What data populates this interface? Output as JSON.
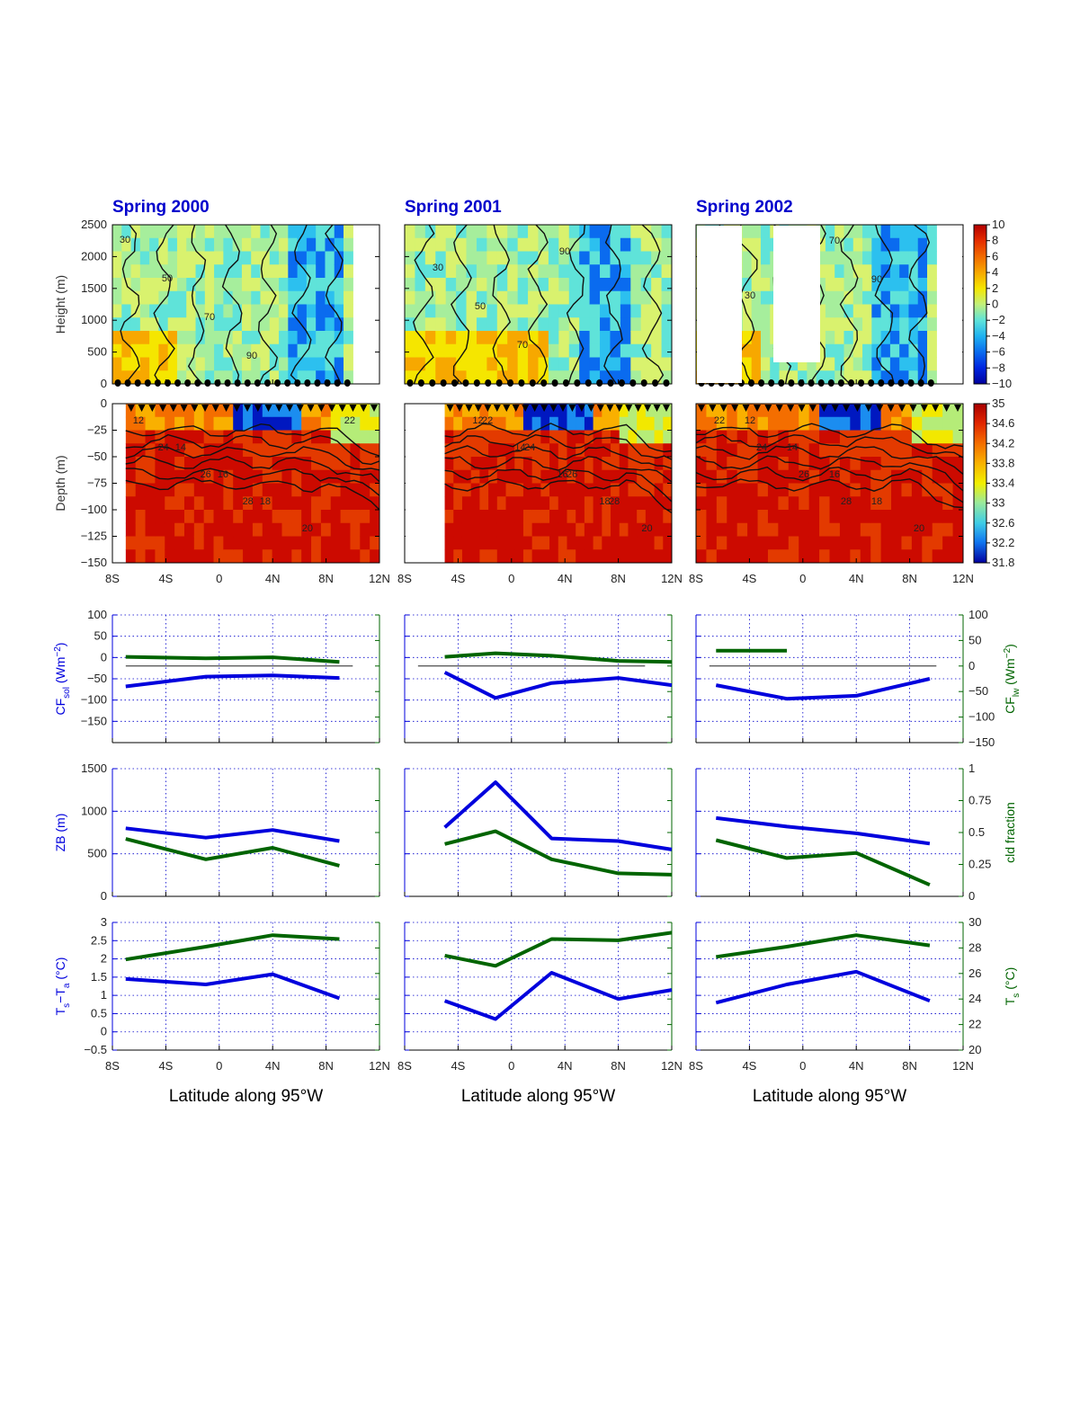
{
  "figure": {
    "column_titles": [
      "Spring 2000",
      "Spring 2001",
      "Spring 2002"
    ],
    "x_axis": {
      "label": "Latitude along 95°W",
      "ticks": [
        -8,
        -4,
        0,
        4,
        8,
        12
      ],
      "tick_labels": [
        "8S",
        "4S",
        "0",
        "4N",
        "8N",
        "12N"
      ],
      "range": [
        -8,
        12
      ]
    },
    "colors": {
      "title": "#0000cc",
      "blue_series": "#0000dd",
      "green_series": "#006400",
      "grid": "#0000cc"
    }
  },
  "chart_data": [
    {
      "type": "heatmap",
      "row": "atmosphere",
      "ylabel": "Height (m)",
      "yticks": [
        0,
        500,
        1000,
        1500,
        2000,
        2500
      ],
      "ylim": [
        0,
        2500
      ],
      "colorbar": {
        "ticks": [
          "10",
          "8",
          "6",
          "4",
          "2",
          "0",
          "−2",
          "−4",
          "−6",
          "−8",
          "−10"
        ],
        "range": [
          -10,
          10
        ]
      },
      "contour_labels": [
        "30",
        "50",
        "70",
        "90"
      ],
      "columns": [
        {
          "year": "Spring 2000",
          "data_extent": [
            -8,
            10
          ]
        },
        {
          "year": "Spring 2001",
          "data_extent": [
            -8,
            12
          ]
        },
        {
          "year": "Spring 2002",
          "data_extent": [
            -8,
            10
          ]
        }
      ]
    },
    {
      "type": "heatmap",
      "row": "ocean",
      "ylabel": "Depth (m)",
      "yticks": [
        0,
        -25,
        -50,
        -75,
        -100,
        -125,
        -150
      ],
      "ylim": [
        -150,
        0
      ],
      "colorbar": {
        "ticks": [
          "35",
          "34.6",
          "34.2",
          "33.8",
          "33.4",
          "33",
          "32.6",
          "32.2",
          "31.8"
        ],
        "range": [
          31.8,
          35
        ]
      },
      "contour_labels": [
        "12",
        "14",
        "16",
        "18",
        "20",
        "22",
        "24",
        "26",
        "28"
      ],
      "columns": [
        {
          "year": "Spring 2000",
          "data_extent": [
            -7,
            12
          ]
        },
        {
          "year": "Spring 2001",
          "data_extent": [
            -5,
            12
          ]
        },
        {
          "year": "Spring 2002",
          "data_extent": [
            -8,
            12
          ]
        }
      ]
    },
    {
      "type": "line",
      "row": "cloud_forcing",
      "ylabel_left": "CF",
      "ylabel_left_sub": "sol",
      "ylabel_left_unit": " (Wm",
      "ylabel_left_sup": "−2",
      "ylabel_right": "CF",
      "ylabel_right_sub": "lw",
      "ylabel_right_unit": " (Wm",
      "ylabel_right_sup": "−2",
      "yticks_left": [
        100,
        50,
        0,
        -50,
        -100,
        -150
      ],
      "ylim_left": [
        -200,
        100
      ],
      "yticks_right": [
        100,
        50,
        0,
        -50,
        -100,
        -150
      ],
      "ylim_right": [
        -150,
        100
      ],
      "series": [
        {
          "name": "CF_sol",
          "axis": "left",
          "color": "#0000dd",
          "columns": [
            {
              "x": [
                -7,
                -1,
                4,
                9
              ],
              "y": [
                -68,
                -45,
                -42,
                -48
              ]
            },
            {
              "x": [
                -5,
                -1.2,
                3,
                8,
                12
              ],
              "y": [
                -35,
                -95,
                -60,
                -48,
                -65
              ]
            },
            {
              "x": [
                -6.5,
                -1.2,
                4,
                9.5
              ],
              "y": [
                -65,
                -97,
                -90,
                -50
              ]
            }
          ]
        },
        {
          "name": "CF_lw",
          "axis": "right",
          "color": "#006400",
          "columns": [
            {
              "x": [
                -7,
                -1,
                4,
                9
              ],
              "y": [
                18,
                15,
                17,
                8
              ]
            },
            {
              "x": [
                -5,
                -1.2,
                3,
                8,
                12
              ],
              "y": [
                18,
                25,
                20,
                10,
                8
              ]
            },
            {
              "x": [
                -6.5,
                -1.2
              ],
              "y": [
                30,
                30
              ]
            }
          ]
        }
      ]
    },
    {
      "type": "line",
      "row": "cloud_base",
      "ylabel_left": "ZB (m)",
      "ylabel_right": "cld fraction",
      "yticks_left": [
        0,
        500,
        1000,
        1500
      ],
      "ylim_left": [
        0,
        1500
      ],
      "yticks_right": [
        "0",
        "0.25",
        "0.5",
        "0.75",
        "1"
      ],
      "ylim_right": [
        0,
        1
      ],
      "series": [
        {
          "name": "ZB",
          "axis": "left",
          "color": "#0000dd",
          "columns": [
            {
              "x": [
                -7,
                -1,
                4,
                9
              ],
              "y": [
                800,
                690,
                780,
                650
              ]
            },
            {
              "x": [
                -5,
                -1.2,
                3,
                8,
                12
              ],
              "y": [
                810,
                1340,
                680,
                650,
                550
              ]
            },
            {
              "x": [
                -6.5,
                -1.2,
                4,
                9.5
              ],
              "y": [
                920,
                820,
                740,
                620
              ]
            }
          ]
        },
        {
          "name": "cld fraction",
          "axis": "right",
          "color": "#006400",
          "columns": [
            {
              "x": [
                -7,
                -1,
                4,
                9
              ],
              "y": [
                0.45,
                0.29,
                0.38,
                0.24
              ]
            },
            {
              "x": [
                -5,
                -1.2,
                3,
                8,
                12
              ],
              "y": [
                0.41,
                0.51,
                0.29,
                0.18,
                0.17
              ]
            },
            {
              "x": [
                -6.5,
                -1.2,
                4,
                9.5
              ],
              "y": [
                0.44,
                0.3,
                0.34,
                0.09
              ]
            }
          ]
        }
      ]
    },
    {
      "type": "line",
      "row": "surface_temperature",
      "ylabel_left": "T",
      "ylabel_left_sub": "s",
      "ylabel_left_mid": "−T",
      "ylabel_left_sub2": "a",
      "ylabel_left_unit": " (°C)",
      "ylabel_right": "T",
      "ylabel_right_sub": "s",
      "ylabel_right_unit": " (°C)",
      "yticks_left": [
        "−0.5",
        "0",
        "0.5",
        "1",
        "1.5",
        "2",
        "2.5",
        "3"
      ],
      "ylim_left": [
        -0.5,
        3
      ],
      "yticks_right": [
        20,
        22,
        24,
        26,
        28,
        30
      ],
      "ylim_right": [
        20,
        30
      ],
      "series": [
        {
          "name": "Ts−Ta",
          "axis": "left",
          "color": "#0000dd",
          "columns": [
            {
              "x": [
                -7,
                -1,
                4,
                9
              ],
              "y": [
                1.45,
                1.3,
                1.58,
                0.92
              ]
            },
            {
              "x": [
                -5,
                -1.2,
                3,
                8,
                12
              ],
              "y": [
                0.85,
                0.35,
                1.62,
                0.9,
                1.15
              ]
            },
            {
              "x": [
                -6.5,
                -1.2,
                4,
                9.5
              ],
              "y": [
                0.8,
                1.3,
                1.65,
                0.85
              ]
            }
          ]
        },
        {
          "name": "Ts",
          "axis": "right",
          "color": "#006400",
          "columns": [
            {
              "x": [
                -7,
                -1,
                4,
                9
              ],
              "y": [
                27.1,
                28.1,
                29.0,
                28.7
              ]
            },
            {
              "x": [
                -5,
                -1.2,
                3,
                8,
                12
              ],
              "y": [
                27.4,
                26.6,
                28.7,
                28.6,
                29.2
              ]
            },
            {
              "x": [
                -6.5,
                -1.2,
                4,
                9.5
              ],
              "y": [
                27.3,
                28.1,
                29.0,
                28.2
              ]
            }
          ]
        }
      ]
    }
  ]
}
